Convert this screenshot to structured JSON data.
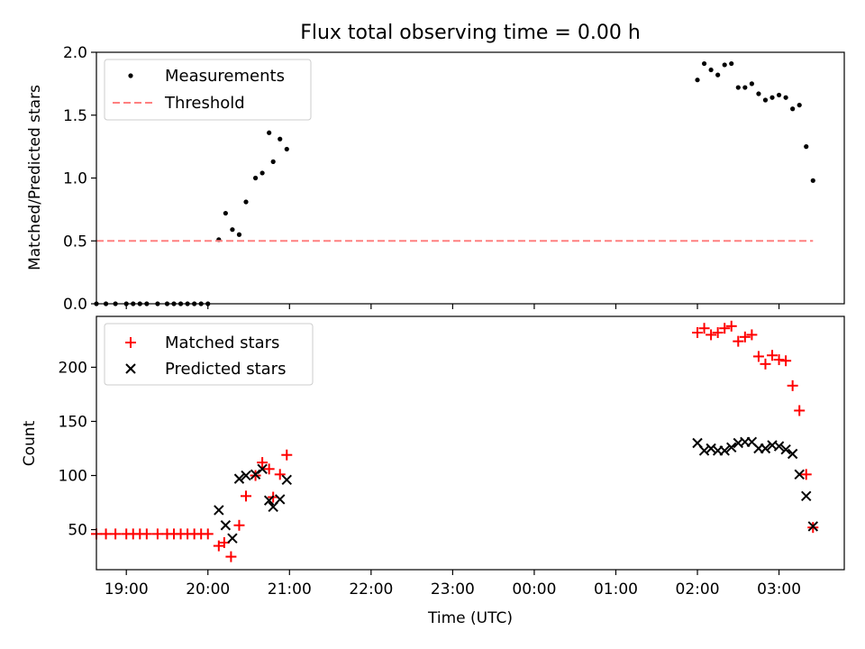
{
  "figure": {
    "title": "Flux total observing time = 0.00 h"
  },
  "chart_data": [
    {
      "type": "scatter",
      "ylabel": "Matched/Predicted stars",
      "xlabel": "",
      "ylim": [
        0,
        2.0
      ],
      "xlim": [
        "18:38",
        "03:48"
      ],
      "y_ticks": [
        "0.0",
        "0.5",
        "1.0",
        "1.5",
        "2.0"
      ],
      "grid": false,
      "legend_position": "top-left",
      "legend": [
        "Measurements",
        "Threshold"
      ],
      "series": [
        {
          "name": "Measurements",
          "marker": "dot",
          "color": "#000000",
          "x": [
            "18:38",
            "18:45",
            "18:52",
            "19:00",
            "19:05",
            "19:10",
            "19:15",
            "19:23",
            "19:30",
            "19:35",
            "19:40",
            "19:45",
            "19:50",
            "19:55",
            "20:00",
            "20:08",
            "20:13",
            "20:18",
            "20:23",
            "20:28",
            "20:35",
            "20:40",
            "20:45",
            "20:48",
            "20:53",
            "20:58",
            "02:00",
            "02:05",
            "02:10",
            "02:15",
            "02:20",
            "02:25",
            "02:30",
            "02:35",
            "02:40",
            "02:45",
            "02:50",
            "02:55",
            "03:00",
            "03:05",
            "03:10",
            "03:15",
            "03:20",
            "03:25"
          ],
          "y": [
            0,
            0,
            0,
            0,
            0,
            0,
            0,
            0,
            0,
            0,
            0,
            0,
            0,
            0,
            0,
            0.51,
            0.72,
            0.59,
            0.55,
            0.81,
            1.0,
            1.04,
            1.36,
            1.13,
            1.31,
            1.23,
            1.78,
            1.91,
            1.86,
            1.82,
            1.9,
            1.91,
            1.72,
            1.72,
            1.75,
            1.67,
            1.62,
            1.64,
            1.66,
            1.64,
            1.55,
            1.58,
            1.25,
            0.98
          ]
        },
        {
          "name": "Threshold",
          "style": "dashed",
          "color": "#ff8080",
          "x": [
            "18:38",
            "03:25"
          ],
          "y": [
            0.5,
            0.5
          ]
        }
      ]
    },
    {
      "type": "scatter",
      "ylabel": "Count",
      "xlabel": "Time (UTC)",
      "ylim": [
        13,
        247
      ],
      "xlim": [
        "18:38",
        "03:48"
      ],
      "y_ticks": [
        "50",
        "100",
        "150",
        "200"
      ],
      "x_ticks": [
        "19:00",
        "20:00",
        "21:00",
        "22:00",
        "23:00",
        "00:00",
        "01:00",
        "02:00",
        "03:00"
      ],
      "grid": false,
      "legend_position": "top-left",
      "legend": [
        "Matched stars",
        "Predicted stars"
      ],
      "series": [
        {
          "name": "Matched stars",
          "marker": "plus",
          "color": "#ff0000",
          "x": [
            "18:38",
            "18:45",
            "18:52",
            "19:00",
            "19:05",
            "19:10",
            "19:15",
            "19:23",
            "19:30",
            "19:35",
            "19:40",
            "19:45",
            "19:50",
            "19:55",
            "20:00",
            "20:08",
            "20:12",
            "20:17",
            "20:23",
            "20:28",
            "20:35",
            "20:40",
            "20:45",
            "20:48",
            "20:53",
            "20:58",
            "02:00",
            "02:05",
            "02:10",
            "02:15",
            "02:20",
            "02:25",
            "02:30",
            "02:35",
            "02:40",
            "02:45",
            "02:50",
            "02:55",
            "03:00",
            "03:05",
            "03:10",
            "03:15",
            "03:20",
            "03:25"
          ],
          "y": [
            46,
            46,
            46,
            46,
            46,
            46,
            46,
            46,
            46,
            46,
            46,
            46,
            46,
            46,
            46,
            35,
            38,
            25,
            54,
            81,
            100,
            112,
            106,
            80,
            101,
            119,
            232,
            236,
            230,
            232,
            236,
            238,
            224,
            228,
            230,
            210,
            203,
            211,
            207,
            206,
            183,
            160,
            101,
            52
          ]
        },
        {
          "name": "Predicted stars",
          "marker": "x",
          "color": "#000000",
          "x": [
            "20:08",
            "20:13",
            "20:18",
            "20:23",
            "20:28",
            "20:35",
            "20:40",
            "20:45",
            "20:48",
            "20:53",
            "20:58",
            "02:00",
            "02:05",
            "02:10",
            "02:15",
            "02:20",
            "02:25",
            "02:30",
            "02:35",
            "02:40",
            "02:45",
            "02:50",
            "02:55",
            "03:00",
            "03:05",
            "03:10",
            "03:15",
            "03:20",
            "03:25"
          ],
          "y": [
            68,
            54,
            42,
            97,
            100,
            101,
            106,
            77,
            71,
            78,
            96,
            130,
            123,
            125,
            123,
            123,
            126,
            130,
            131,
            131,
            125,
            125,
            128,
            127,
            124,
            120,
            101,
            81,
            53
          ]
        }
      ]
    }
  ]
}
